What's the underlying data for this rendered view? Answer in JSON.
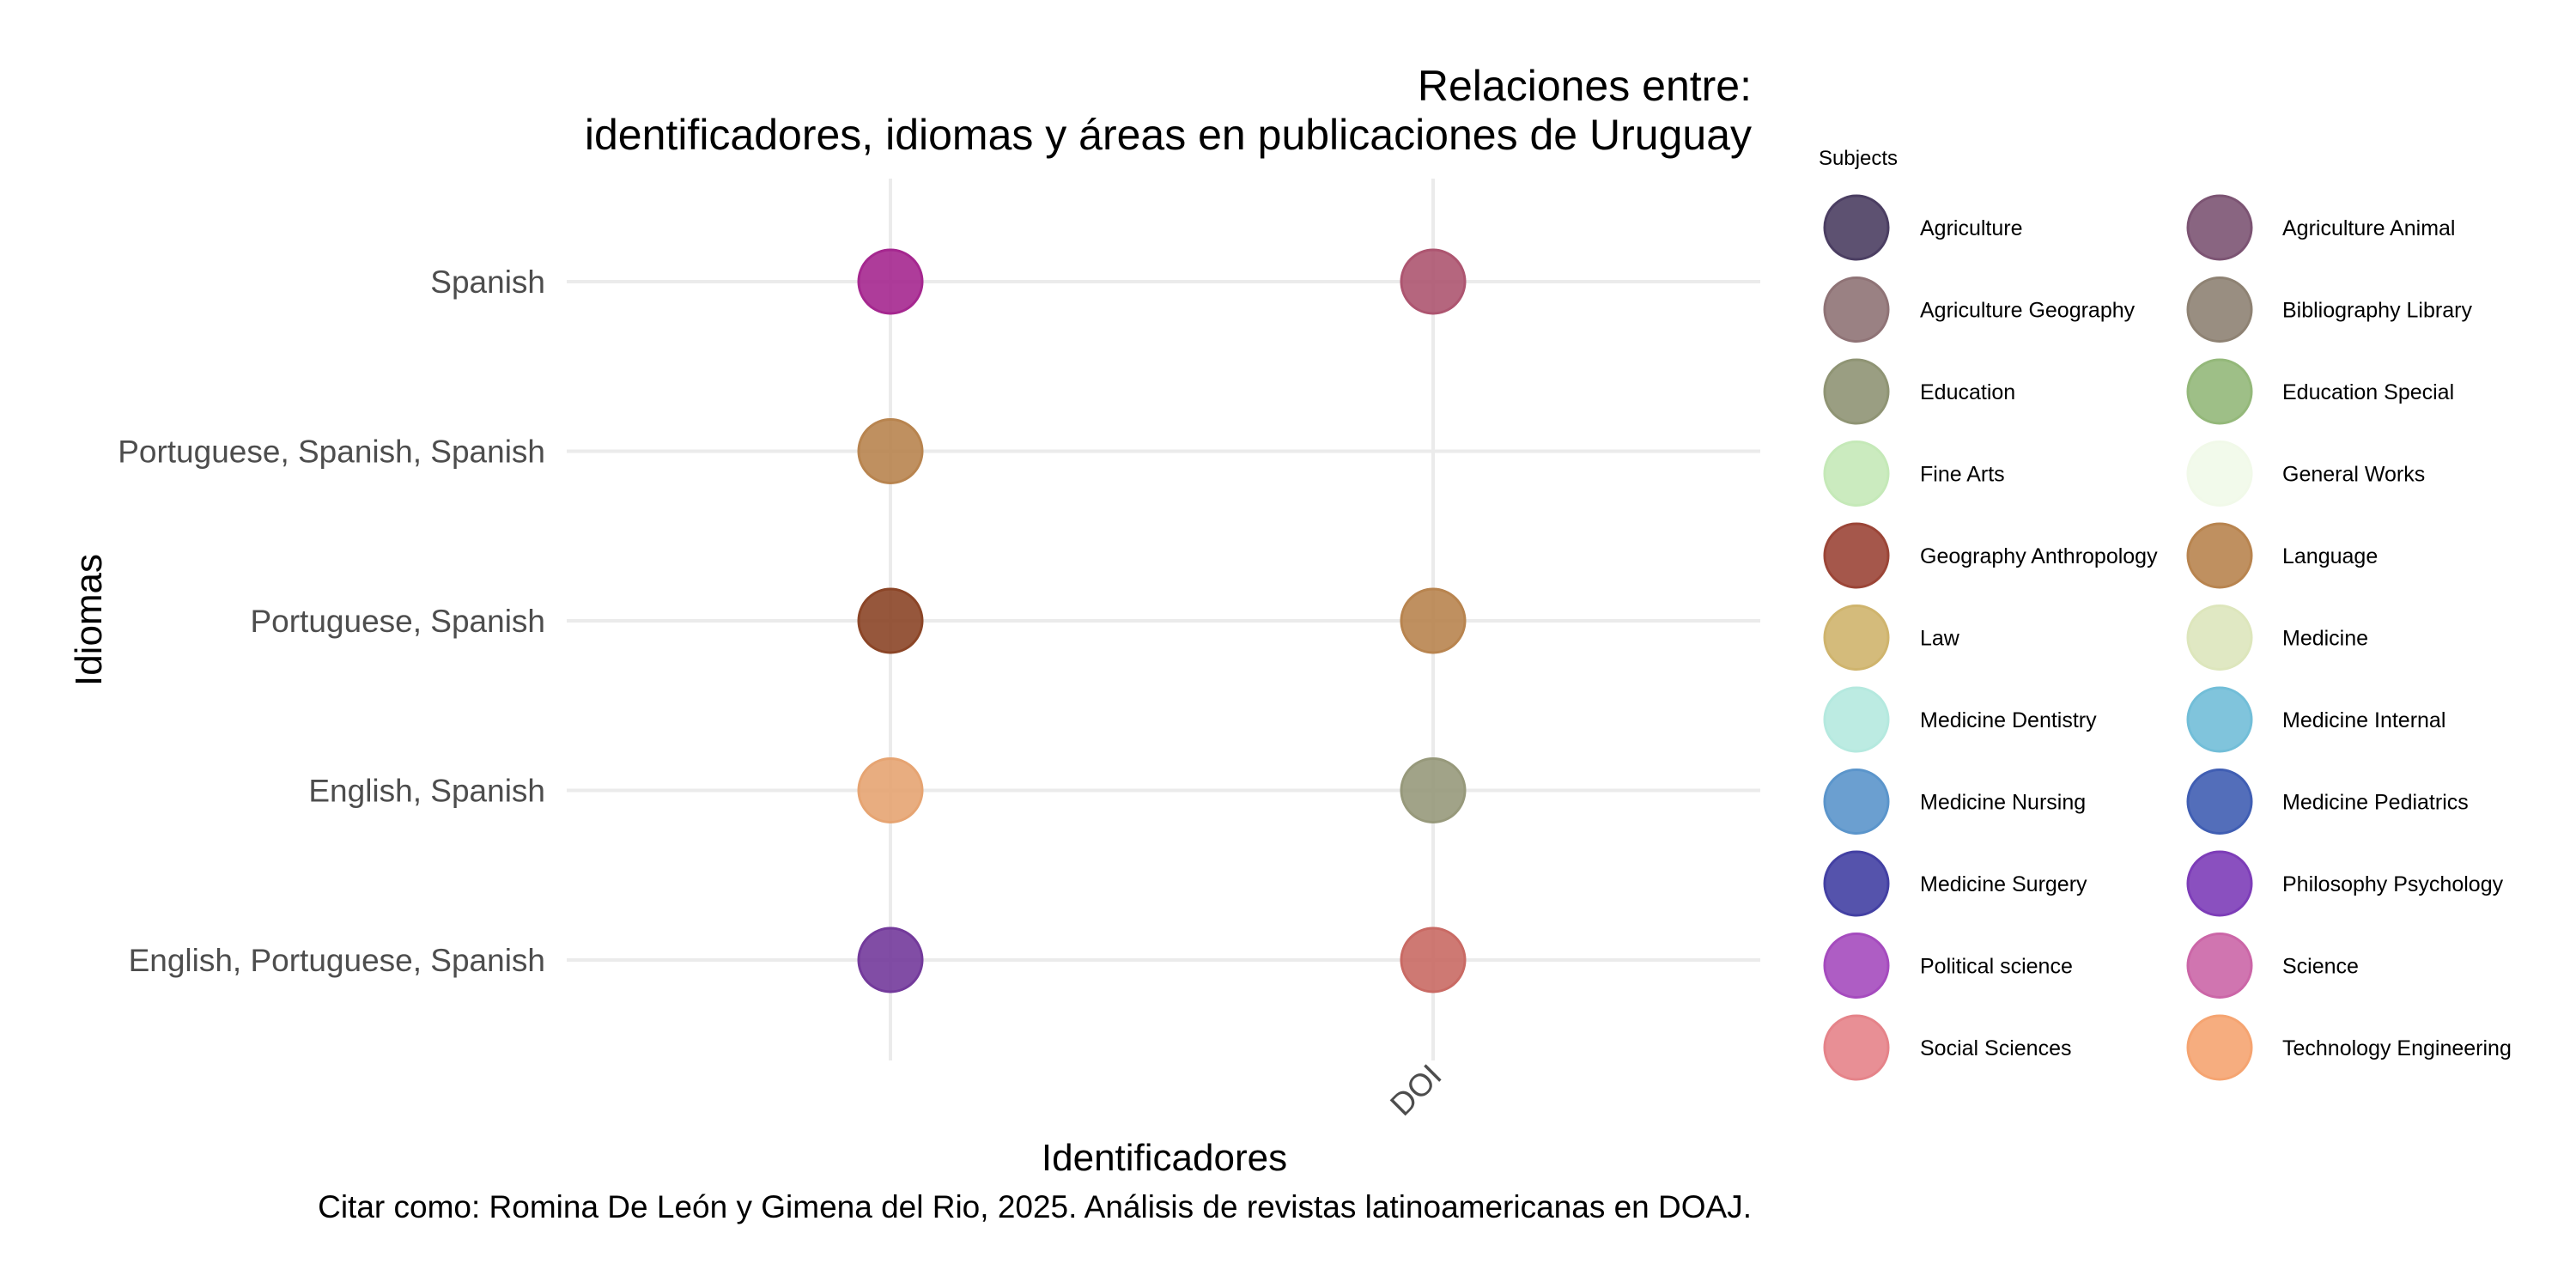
{
  "chart_data": {
    "type": "scatter",
    "title_line1": "Relaciones entre:",
    "title_line2": "identificadores, idiomas y áreas en publicaciones de Uruguay",
    "xlabel": "Identificadores",
    "ylabel": "Idiomas",
    "caption": "Citar como: Romina De León y Gimena del Rio, 2025. Análisis de revistas latinoamericanas en DOAJ.",
    "x_categories": [
      "",
      "DOI"
    ],
    "y_categories": [
      "Spanish",
      "Portuguese, Spanish, Spanish",
      "Portuguese, Spanish",
      "English, Spanish",
      "English, Portuguese, Spanish"
    ],
    "points": [
      {
        "x": "",
        "y": "Spanish",
        "color": "#a5278f"
      },
      {
        "x": "DOI",
        "y": "Spanish",
        "color": "#ad5570"
      },
      {
        "x": "",
        "y": "Portuguese, Spanish, Spanish",
        "color": "#b8844f"
      },
      {
        "x": "",
        "y": "Portuguese, Spanish",
        "color": "#8b4527"
      },
      {
        "x": "DOI",
        "y": "Portuguese, Spanish",
        "color": "#b8844f"
      },
      {
        "x": "",
        "y": "English, Spanish",
        "color": "#e6a472"
      },
      {
        "x": "DOI",
        "y": "English, Spanish",
        "color": "#97997b"
      },
      {
        "x": "",
        "y": "English, Portuguese, Spanish",
        "color": "#733a9b"
      },
      {
        "x": "DOI",
        "y": "English, Portuguese, Spanish",
        "color": "#c96a64"
      }
    ],
    "grid": true,
    "legend": {
      "title": "Subjects",
      "position": "right",
      "items": [
        {
          "label": "Agriculture",
          "color": "#4b3e62"
        },
        {
          "label": "Agriculture Animal",
          "color": "#7c5473"
        },
        {
          "label": "Agriculture Geography",
          "color": "#8f7376"
        },
        {
          "label": "Bibliography Library",
          "color": "#8e8273"
        },
        {
          "label": "Education",
          "color": "#8f9474"
        },
        {
          "label": "Education Special",
          "color": "#94b87a"
        },
        {
          "label": "Fine Arts",
          "color": "#c5e9b8"
        },
        {
          "label": "General Works",
          "color": "#f1f9e9"
        },
        {
          "label": "Geography Anthropology",
          "color": "#9b4537"
        },
        {
          "label": "Language",
          "color": "#b8844f"
        },
        {
          "label": "Law",
          "color": "#cfb46d"
        },
        {
          "label": "Medicine",
          "color": "#dde6bc"
        },
        {
          "label": "Medicine Dentistry",
          "color": "#b5e9df"
        },
        {
          "label": "Medicine Internal",
          "color": "#72bed8"
        },
        {
          "label": "Medicine Nursing",
          "color": "#5b95cb"
        },
        {
          "label": "Medicine Pediatrics",
          "color": "#405eb3"
        },
        {
          "label": "Medicine Surgery",
          "color": "#4340a3"
        },
        {
          "label": "Philosophy Psychology",
          "color": "#7d3db8"
        },
        {
          "label": "Political science",
          "color": "#a54bbe"
        },
        {
          "label": "Science",
          "color": "#cb66a7"
        },
        {
          "label": "Social Sciences",
          "color": "#e58389"
        },
        {
          "label": "Technology Engineering",
          "color": "#f5a471"
        }
      ]
    }
  }
}
